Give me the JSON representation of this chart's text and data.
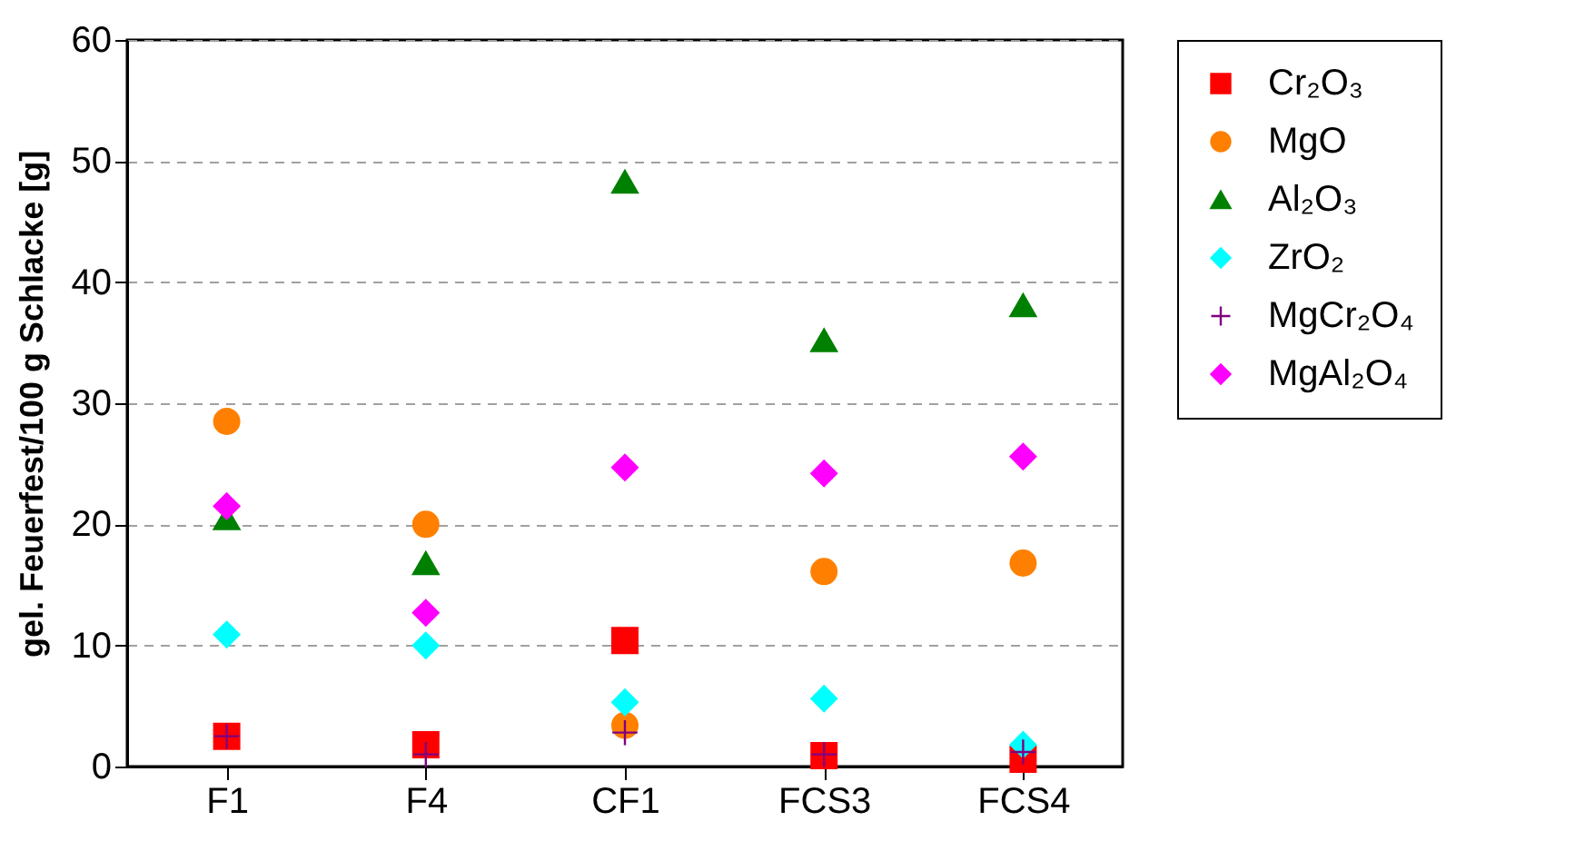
{
  "chart_data": {
    "type": "scatter",
    "ylabel": "gel. Feuerfest/100 g Schlacke [g]",
    "categories": [
      "F1",
      "F4",
      "CF1",
      "FCS3",
      "FCS4"
    ],
    "ylim": [
      0,
      60
    ],
    "yticks": [
      0,
      10,
      20,
      30,
      40,
      50,
      60
    ],
    "grid": "y",
    "legend": "right",
    "series": [
      {
        "name": "Cr₂O₃",
        "color": "#ff0000",
        "marker": "square",
        "values": [
          2.5,
          1.8,
          10.4,
          0.9,
          0.6
        ]
      },
      {
        "name": "MgO",
        "color": "#ff8000",
        "marker": "circle",
        "values": [
          28.5,
          20.0,
          3.4,
          16.1,
          16.8
        ]
      },
      {
        "name": "Al₂O₃",
        "color": "#008000",
        "marker": "triangle",
        "values": [
          20.5,
          16.8,
          48.3,
          35.2,
          38.1
        ]
      },
      {
        "name": "ZrO₂",
        "color": "#00ffff",
        "marker": "diamond",
        "values": [
          10.9,
          10.0,
          5.3,
          5.6,
          1.8
        ]
      },
      {
        "name": "MgCr₂O₄",
        "color": "#800080",
        "marker": "cross",
        "values": [
          2.5,
          1.0,
          2.8,
          1.0,
          1.2
        ]
      },
      {
        "name": "MgAl₂O₄",
        "color": "#ff00ff",
        "marker": "diamond",
        "values": [
          21.5,
          12.7,
          24.7,
          24.2,
          25.6
        ]
      }
    ]
  }
}
